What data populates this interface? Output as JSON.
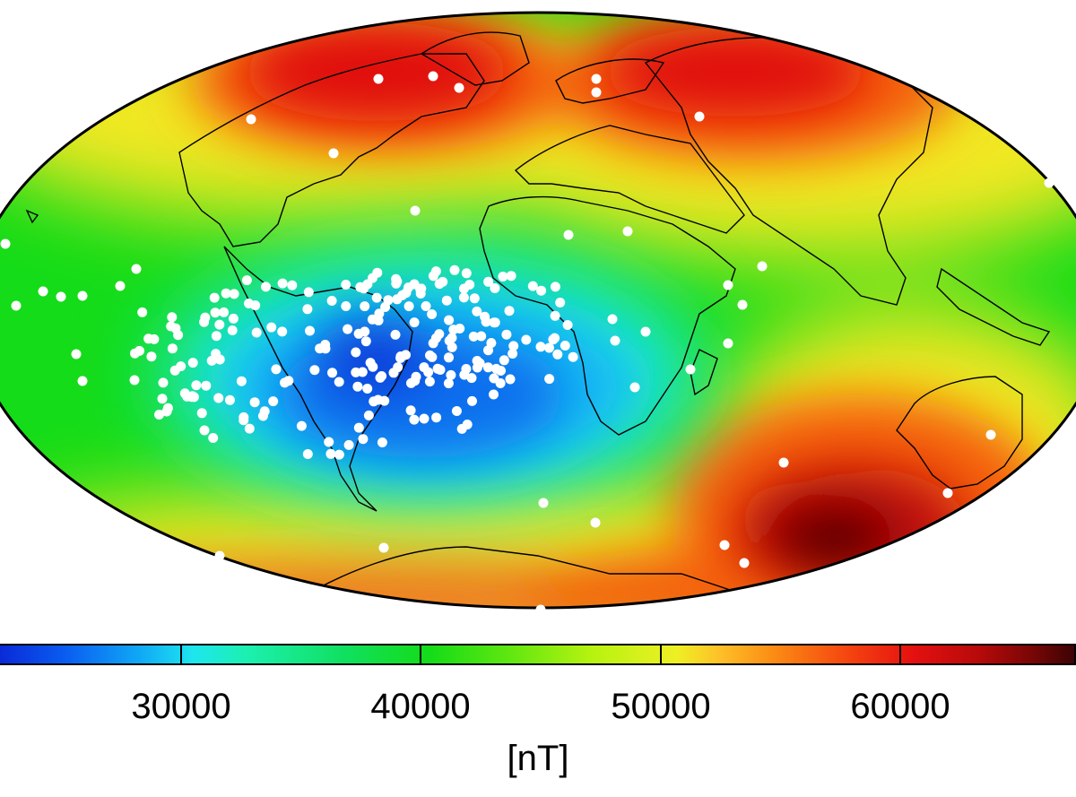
{
  "map": {
    "projection": "mollweide",
    "parameter": "geomagnetic field intensity",
    "colors": {
      "low_anomaly": "#0a2ad8",
      "mid_field": "#14dc18",
      "high_field": "#e51010",
      "observation_points": "#ffffff",
      "coastlines": "#000000"
    },
    "observation_points": "white dots"
  },
  "colorbar": {
    "ticks": [
      "30000",
      "40000",
      "50000",
      "60000"
    ],
    "unit": "[nT]"
  }
}
